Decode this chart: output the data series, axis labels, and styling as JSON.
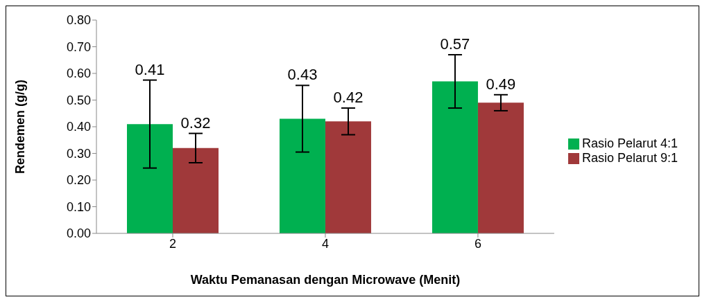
{
  "chart_data": {
    "type": "bar",
    "xlabel": "Waktu Pemanasan dengan Microwave (Menit)",
    "ylabel": "Rendemen (g/g)",
    "categories": [
      "2",
      "4",
      "6"
    ],
    "series": [
      {
        "name": "Rasio Pelarut 4:1",
        "color": "#00b050",
        "values": [
          0.41,
          0.43,
          0.57
        ],
        "errors": [
          0.165,
          0.125,
          0.1
        ]
      },
      {
        "name": "Rasio Pelarut 9:1",
        "color": "#a0393a",
        "values": [
          0.32,
          0.42,
          0.49
        ],
        "errors": [
          0.055,
          0.05,
          0.03
        ]
      }
    ],
    "ylim": [
      0,
      0.8
    ],
    "yticks": [
      {
        "value": 0,
        "label": "0.00"
      },
      {
        "value": 0.1,
        "label": "0.10"
      },
      {
        "value": 0.2,
        "label": "0.20"
      },
      {
        "value": 0.3,
        "label": "0.30"
      },
      {
        "value": 0.4,
        "label": "0.40"
      },
      {
        "value": 0.5,
        "label": "0.50"
      },
      {
        "value": 0.6,
        "label": "0.60"
      },
      {
        "value": 0.7,
        "label": "0.70"
      },
      {
        "value": 0.8,
        "label": "0.80"
      }
    ],
    "data_labels": true,
    "legend": "right",
    "grid": false
  }
}
